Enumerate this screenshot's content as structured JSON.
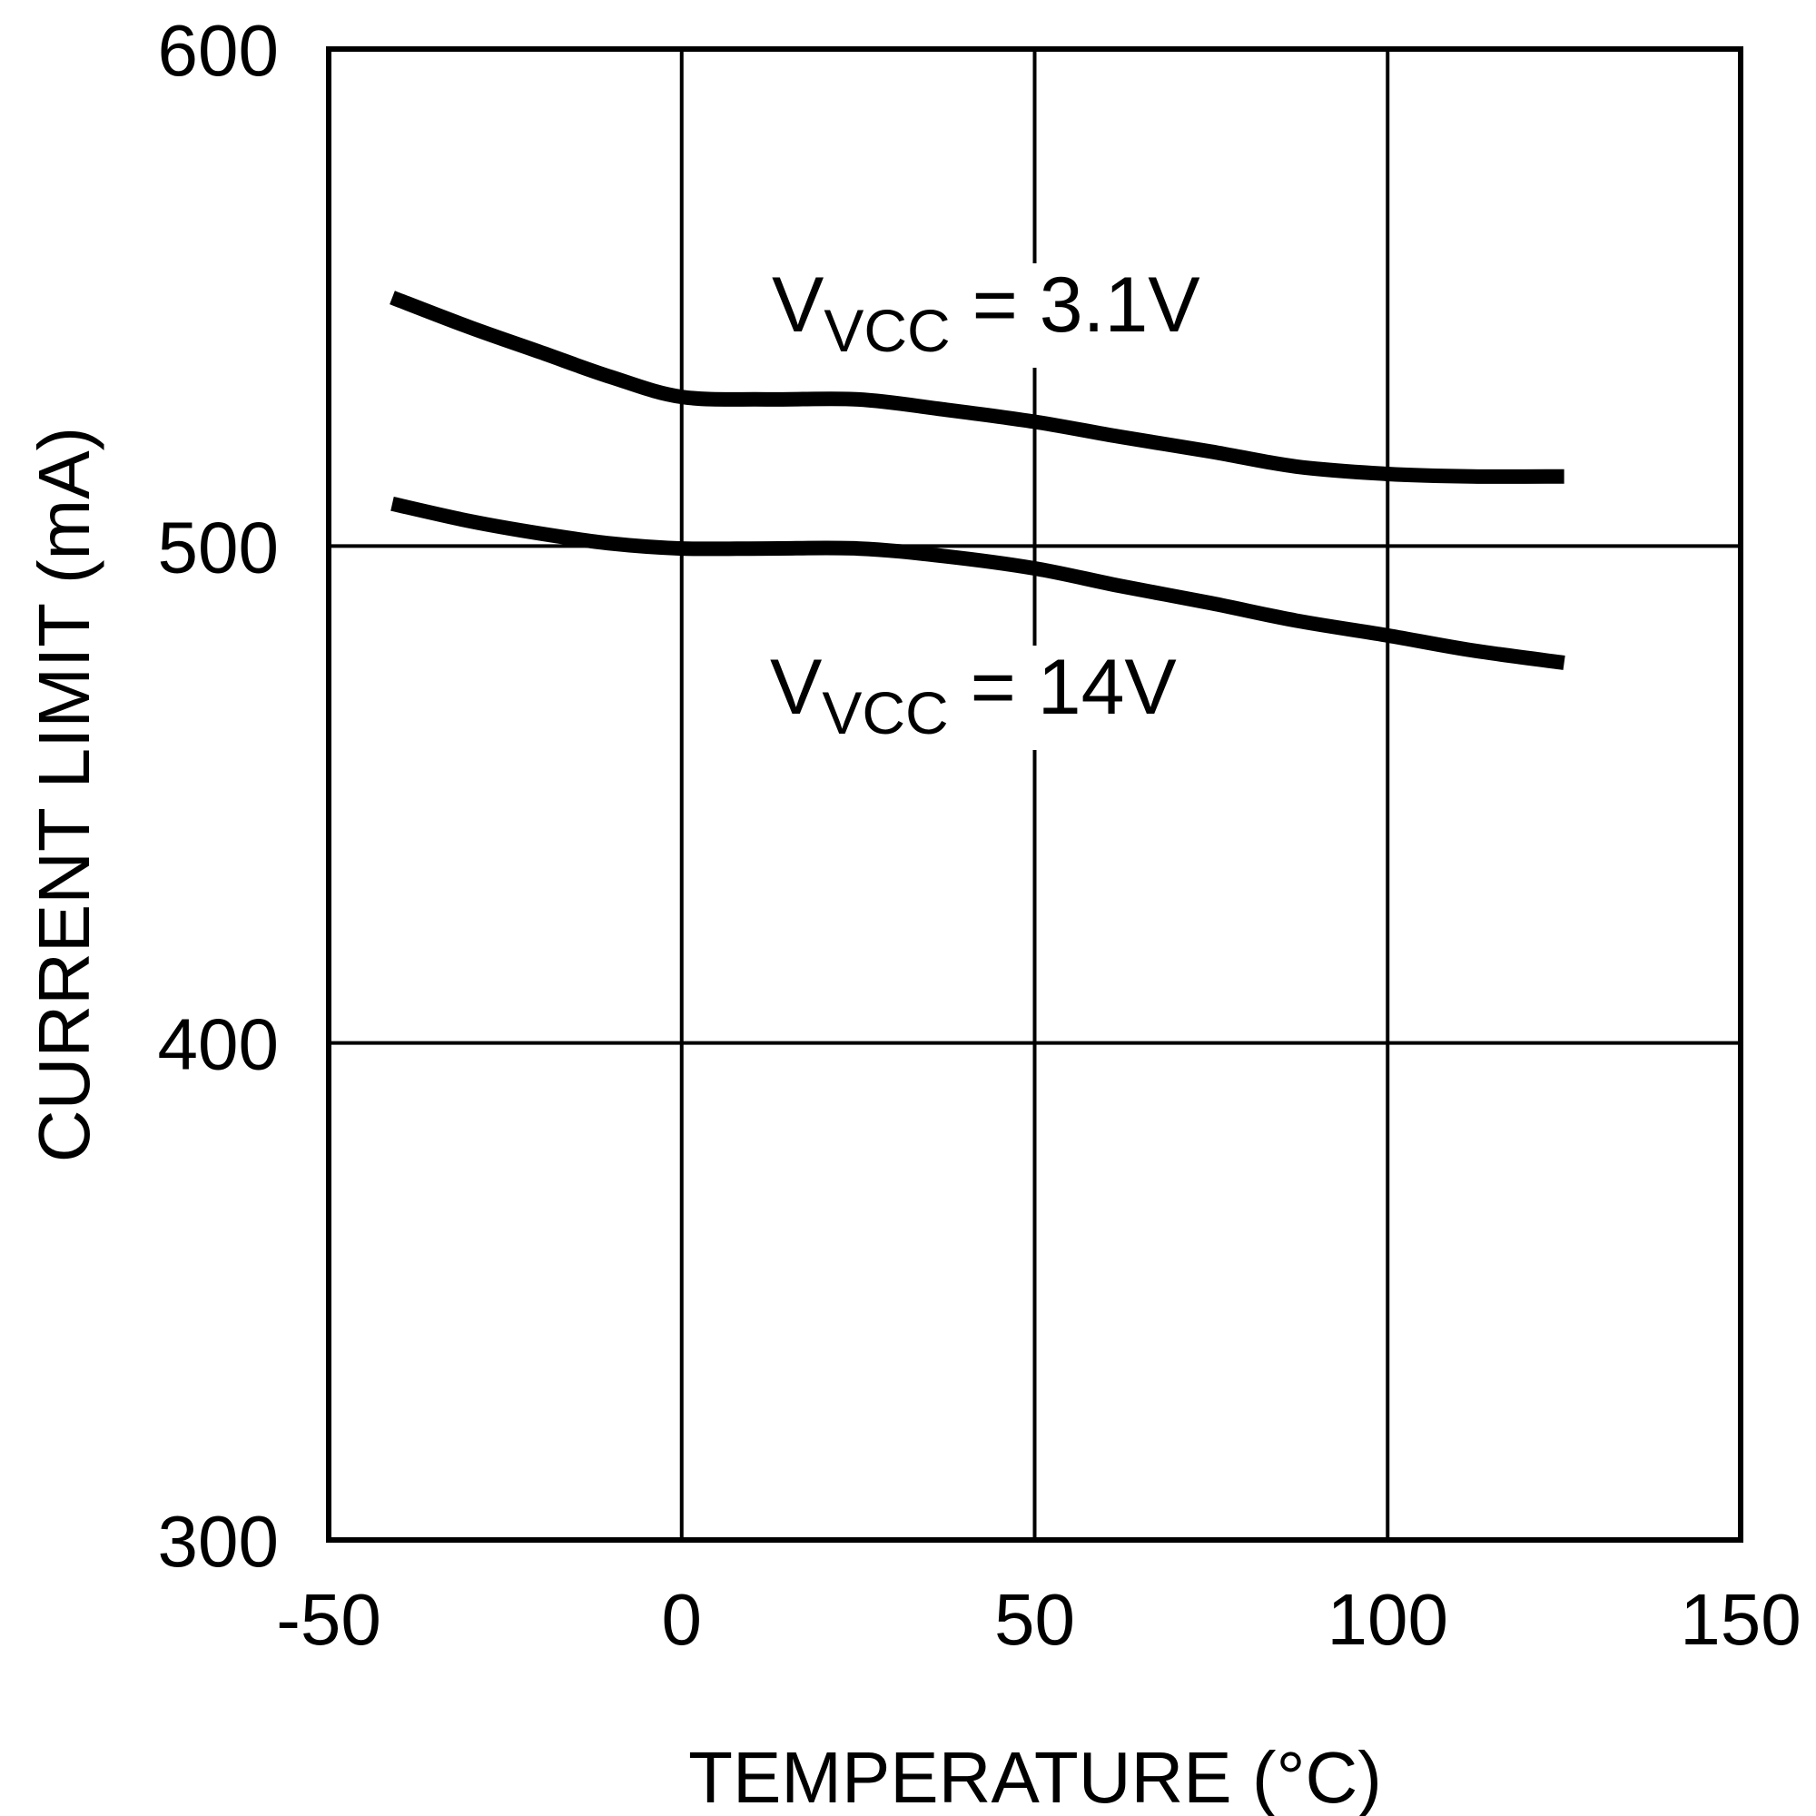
{
  "chart_data": {
    "type": "line",
    "title": "",
    "xlabel": "TEMPERATURE (°C)",
    "ylabel": "CURRENT LIMIT (mA)",
    "xlim": [
      -50,
      150
    ],
    "ylim": [
      300,
      600
    ],
    "xticks": [
      -50,
      0,
      50,
      100,
      150
    ],
    "yticks": [
      300,
      400,
      500,
      600
    ],
    "xtick_labels": [
      "-50",
      "0",
      "50",
      "100",
      "150"
    ],
    "ytick_labels": [
      "300",
      "400",
      "500",
      "600"
    ],
    "grid": true,
    "legend": "none (inline labels)",
    "series": [
      {
        "name": "VVCC = 3.1V",
        "label_main": "V",
        "label_sub": "VCC",
        "label_rest": " = 3.1V",
        "x": [
          -41,
          -30,
          -20,
          -10,
          0,
          12,
          25,
          37,
          50,
          62,
          75,
          87,
          100,
          112,
          125
        ],
        "y": [
          550,
          544,
          539,
          534,
          530,
          529.5,
          529.5,
          527.5,
          525,
          522,
          519,
          516,
          514.5,
          514,
          514
        ]
      },
      {
        "name": "VVCC = 14V",
        "label_main": "V",
        "label_sub": "VCC",
        "label_rest": " = 14V",
        "x": [
          -41,
          -30,
          -20,
          -10,
          0,
          12,
          25,
          37,
          50,
          62,
          75,
          87,
          100,
          112,
          125
        ],
        "y": [
          508.5,
          505,
          502.5,
          500.5,
          499.5,
          499.5,
          499.5,
          498,
          495.5,
          492,
          488.5,
          485,
          482,
          479,
          476.5
        ]
      }
    ],
    "colors": {
      "line": "#000000",
      "grid": "#000000",
      "background": "#ffffff"
    }
  }
}
